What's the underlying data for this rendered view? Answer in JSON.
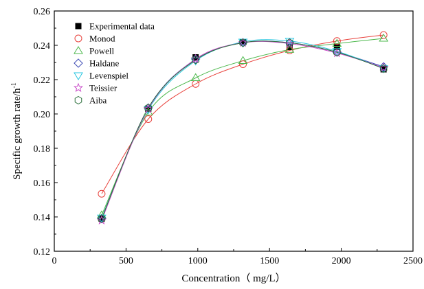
{
  "chart_data": {
    "type": "line",
    "xlabel": "Concentration（ mg/L）",
    "ylabel": "Specific growth rate/h",
    "ylabel_superscript": "-1",
    "xlim": [
      0,
      2500
    ],
    "ylim": [
      0.12,
      0.26
    ],
    "x_ticks": [
      "0",
      "500",
      "1000",
      "1500",
      "2000",
      "2500"
    ],
    "y_ticks": [
      "0.12",
      "0.14",
      "0.16",
      "0.18",
      "0.20",
      "0.22",
      "0.24",
      "0.26"
    ],
    "grid": false,
    "legend_position": "top-left",
    "x": [
      330,
      655,
      985,
      1315,
      1640,
      1970,
      2295
    ],
    "experimental": {
      "name": "Experimental data",
      "marker": "filled-square",
      "color": "#000000",
      "values": [
        0.139,
        0.203,
        0.233,
        0.242,
        0.239,
        0.239,
        0.226
      ]
    },
    "series": [
      {
        "name": "Monod",
        "marker": "circle",
        "color": "#e8423c",
        "values": [
          0.1535,
          0.197,
          0.2175,
          0.229,
          0.237,
          0.2425,
          0.246
        ]
      },
      {
        "name": "Powell",
        "marker": "triangle-up",
        "color": "#4cb84c",
        "values": [
          0.141,
          0.201,
          0.221,
          0.231,
          0.2375,
          0.241,
          0.244
        ]
      },
      {
        "name": "Haldane",
        "marker": "diamond",
        "color": "#3f4cb5",
        "values": [
          0.139,
          0.2035,
          0.232,
          0.2415,
          0.2415,
          0.236,
          0.2275
        ]
      },
      {
        "name": "Levenspiel",
        "marker": "triangle-down",
        "color": "#27c6e0",
        "values": [
          0.1395,
          0.2025,
          0.231,
          0.242,
          0.2425,
          0.2365,
          0.2265
        ]
      },
      {
        "name": "Teissier",
        "marker": "star",
        "color": "#c94dc9",
        "values": [
          0.138,
          0.203,
          0.232,
          0.2415,
          0.241,
          0.2355,
          0.227
        ]
      },
      {
        "name": "Aiba",
        "marker": "hexagon",
        "color": "#2a6e3a",
        "values": [
          0.139,
          0.2035,
          0.2315,
          0.2415,
          0.2415,
          0.236,
          0.2265
        ]
      }
    ]
  }
}
